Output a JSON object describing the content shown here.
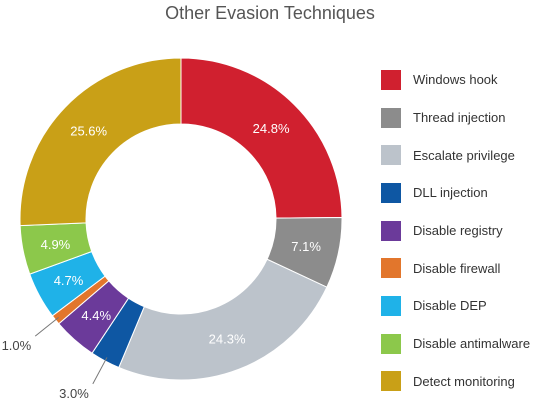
{
  "chart_data": {
    "type": "pie",
    "title": "Other Evasion Techniques",
    "donut": true,
    "legend_position": "right",
    "slices": [
      {
        "name": "Windows hook",
        "value": 24.8,
        "label": "24.8%",
        "color": "#d0202f",
        "label_placement": "inside"
      },
      {
        "name": "Thread injection",
        "value": 7.1,
        "label": "7.1%",
        "color": "#8c8c8c",
        "label_placement": "inside"
      },
      {
        "name": "Escalate privilege",
        "value": 24.3,
        "label": "24.3%",
        "color": "#bcc3cb",
        "label_placement": "inside"
      },
      {
        "name": "DLL injection",
        "value": 3.0,
        "label": "3.0%",
        "color": "#0e57a3",
        "label_placement": "outside"
      },
      {
        "name": "Disable registry",
        "value": 4.4,
        "label": "4.4%",
        "color": "#6b3a9a",
        "label_placement": "inside"
      },
      {
        "name": "Disable firewall",
        "value": 1.0,
        "label": "1.0%",
        "color": "#e2762c",
        "label_placement": "outside"
      },
      {
        "name": "Disable DEP",
        "value": 4.7,
        "label": "4.7%",
        "color": "#1fb2e8",
        "label_placement": "inside"
      },
      {
        "name": "Disable antimalware",
        "value": 4.9,
        "label": "4.9%",
        "color": "#8cc84b",
        "label_placement": "inside"
      },
      {
        "name": "Detect monitoring",
        "value": 25.6,
        "label": "25.6%",
        "color": "#c9a017",
        "label_placement": "inside"
      }
    ]
  }
}
